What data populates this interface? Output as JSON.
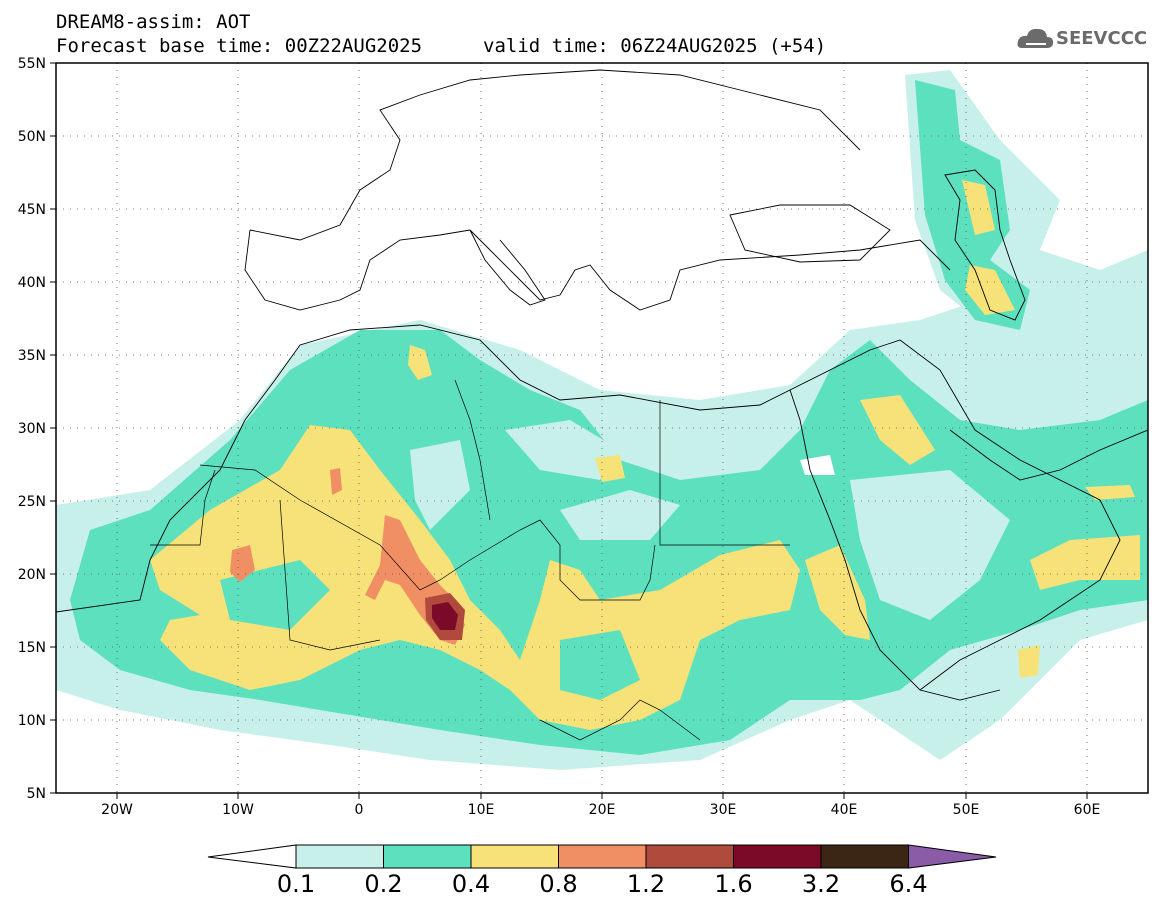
{
  "header": {
    "line1": "DREAM8-assim: AOT",
    "line2": "Forecast base time: 00Z22AUG2025",
    "line3": "valid time: 06Z24AUG2025 (+54)",
    "logo_text": "SEEVCCC"
  },
  "map": {
    "lat_labels": [
      "55N",
      "50N",
      "45N",
      "40N",
      "35N",
      "30N",
      "25N",
      "20N",
      "15N",
      "10N",
      "5N"
    ],
    "lon_labels": [
      "20W",
      "10W",
      "0",
      "10E",
      "20E",
      "30E",
      "40E",
      "50E",
      "60E"
    ],
    "lat_range": [
      5,
      55
    ],
    "lon_range": [
      -25,
      65
    ],
    "grid": "dotted"
  },
  "colorbar": {
    "labels": [
      "0.1",
      "0.2",
      "0.4",
      "0.8",
      "1.2",
      "1.6",
      "3.2",
      "6.4"
    ],
    "colors": [
      "#ffffff",
      "#c8f0ea",
      "#5ce0bd",
      "#f7e27a",
      "#f08e64",
      "#b04a3c",
      "#7a0a28",
      "#3b2615",
      "#8a5ca8"
    ]
  },
  "palette": {
    "aot_0_1": "#c8f0ea",
    "aot_0_2": "#5ce0bd",
    "aot_0_4": "#f7e27a",
    "aot_0_8": "#f08e64",
    "aot_1_2": "#b04a3c",
    "aot_1_6": "#7a0a28"
  }
}
